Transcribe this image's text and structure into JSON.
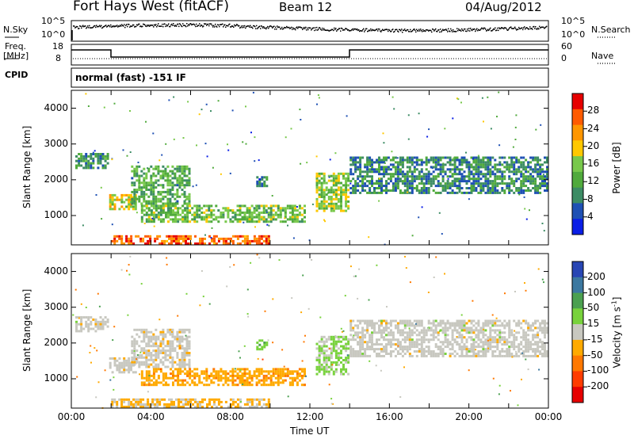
{
  "header": {
    "station": "Fort Hays West (fitACF)",
    "beam": "Beam 12",
    "date": "04/Aug/2012"
  },
  "noise_panel": {
    "left_label": "N.Sky",
    "left_ticks": [
      "10^5",
      "10^0"
    ],
    "right_label": "N.Search",
    "right_ticks": [
      "10^5",
      "10^0"
    ]
  },
  "freq_panel": {
    "label_line1": "Freq.",
    "label_line2": "[MHz]",
    "left_ticks": [
      "18",
      "8"
    ],
    "right_ticks": [
      "60",
      "0"
    ],
    "right_label": "Nave"
  },
  "cpid": {
    "label": "CPID",
    "value": "normal (fast) -151 IF"
  },
  "colors": {
    "power_scale": [
      "#0a1ee6",
      "#1e50b4",
      "#3c8c64",
      "#50aa3c",
      "#78c84b",
      "#ffc800",
      "#ff9600",
      "#ff5a00",
      "#e60000"
    ],
    "velocity_scale": [
      "#2846b4",
      "#3c78a0",
      "#4ba050",
      "#78d23c",
      "#c8c8c0",
      "#ffaa00",
      "#ff7800",
      "#ff3c00",
      "#e60000"
    ]
  },
  "chart_data": [
    {
      "type": "heatmap",
      "name": "power",
      "ylabel": "Slant Range [km]",
      "yticks": [
        "4000",
        "3000",
        "2000",
        "1000"
      ],
      "ylim": [
        180,
        4500
      ],
      "xlim": [
        0,
        24
      ],
      "colorbar": {
        "label": "Power [dB]",
        "ticks": [
          "28",
          "24",
          "20",
          "16",
          "12",
          "8",
          "4"
        ],
        "range": [
          0,
          32
        ]
      },
      "features": [
        {
          "t0": 0.2,
          "t1": 1.9,
          "r0": 2300,
          "r1": 2750,
          "value": 10
        },
        {
          "t0": 1.9,
          "t1": 3.3,
          "r0": 1150,
          "r1": 1600,
          "value": 18
        },
        {
          "t0": 3.0,
          "t1": 6.0,
          "r0": 1300,
          "r1": 2400,
          "value": 12
        },
        {
          "t0": 3.5,
          "t1": 11.8,
          "r0": 800,
          "r1": 1300,
          "value": 14
        },
        {
          "t0": 2.0,
          "t1": 10.0,
          "r0": 180,
          "r1": 450,
          "value": 26
        },
        {
          "t0": 9.3,
          "t1": 9.9,
          "r0": 1800,
          "r1": 2100,
          "value": 8
        },
        {
          "t0": 12.3,
          "t1": 14.0,
          "r0": 1100,
          "r1": 2200,
          "value": 16
        },
        {
          "t0": 14.0,
          "t1": 24.0,
          "r0": 1600,
          "r1": 2650,
          "value": 9
        }
      ]
    },
    {
      "type": "heatmap",
      "name": "velocity",
      "ylabel": "Slant Range [km]",
      "yticks": [
        "4000",
        "3000",
        "2000",
        "1000"
      ],
      "ylim": [
        180,
        4500
      ],
      "xlabel": "Time UT",
      "xticks": [
        "00:00",
        "04:00",
        "08:00",
        "12:00",
        "16:00",
        "20:00",
        "00:00"
      ],
      "xlim": [
        0,
        24
      ],
      "colorbar": {
        "label": "Velocity [m s",
        "label_sup": "-1",
        "label_end": "]",
        "ticks": [
          "200",
          "100",
          "50",
          "15",
          "-15",
          "-50",
          "-100",
          "-200"
        ],
        "range": [
          -250,
          250
        ]
      },
      "features": [
        {
          "t0": 0.2,
          "t1": 1.9,
          "r0": 2300,
          "r1": 2750,
          "value": 0
        },
        {
          "t0": 1.9,
          "t1": 3.3,
          "r0": 1150,
          "r1": 1600,
          "value": 0
        },
        {
          "t0": 3.0,
          "t1": 6.0,
          "r0": 1300,
          "r1": 2400,
          "value": -5
        },
        {
          "t0": 3.5,
          "t1": 11.8,
          "r0": 800,
          "r1": 1300,
          "value": -60
        },
        {
          "t0": 2.0,
          "t1": 10.0,
          "r0": 180,
          "r1": 450,
          "value": -40
        },
        {
          "t0": 9.3,
          "t1": 9.9,
          "r0": 1800,
          "r1": 2100,
          "value": 60
        },
        {
          "t0": 12.3,
          "t1": 14.0,
          "r0": 1100,
          "r1": 2200,
          "value": 40
        },
        {
          "t0": 14.0,
          "t1": 24.0,
          "r0": 1600,
          "r1": 2650,
          "value": 0
        }
      ]
    }
  ]
}
